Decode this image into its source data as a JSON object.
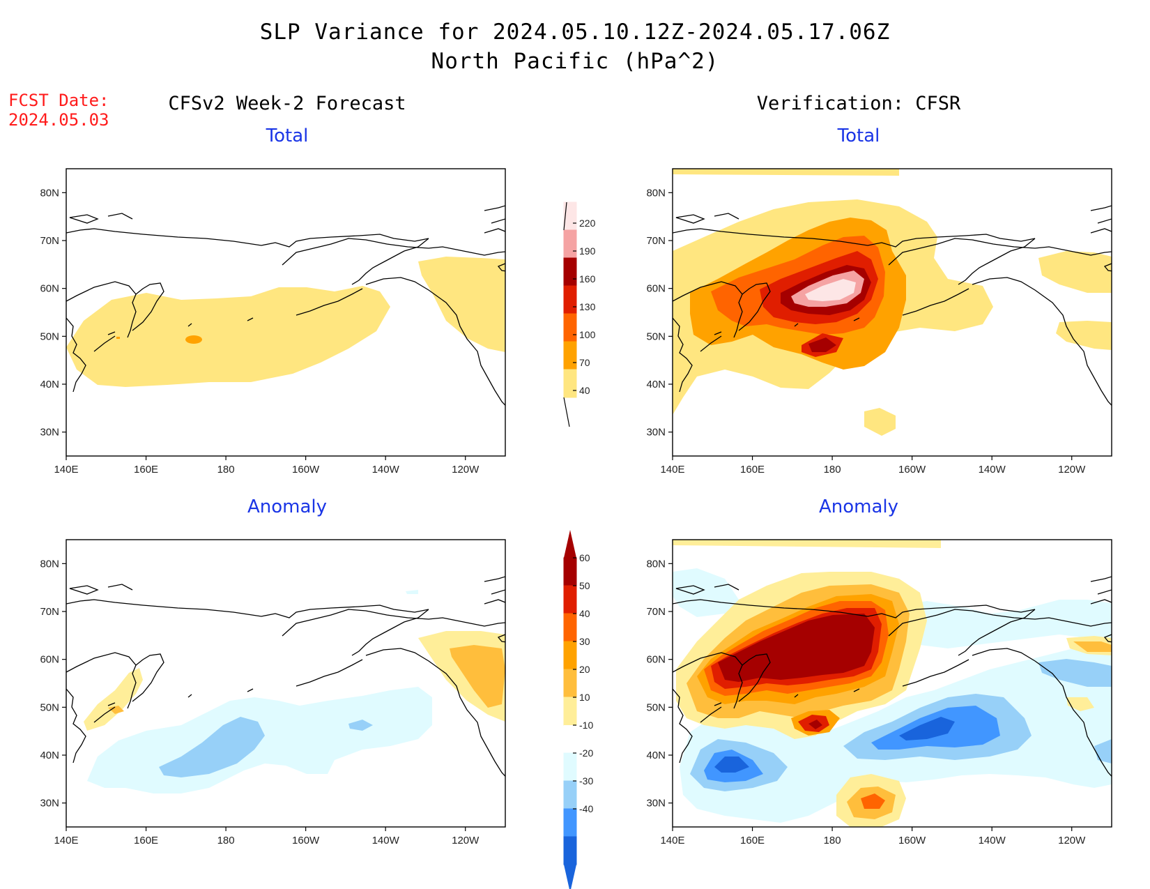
{
  "header": {
    "title": "SLP Variance for 2024.05.10.12Z-2024.05.17.06Z",
    "subtitle": "North Pacific (hPa^2)"
  },
  "fcst": {
    "line1": "FCST Date:",
    "line2": "2024.05.03"
  },
  "columns": {
    "left": "CFSv2 Week-2 Forecast",
    "right": "Verification: CFSR"
  },
  "panels": {
    "top_left": "Total",
    "top_right": "Total",
    "bottom_left": "Anomaly",
    "bottom_right": "Anomaly"
  },
  "axes": {
    "lat_labels": [
      "80N",
      "70N",
      "60N",
      "50N",
      "40N",
      "30N"
    ],
    "lat_values": [
      80,
      70,
      60,
      50,
      40,
      30
    ],
    "lon_labels": [
      "140E",
      "160E",
      "180",
      "160W",
      "140W",
      "120W"
    ],
    "lon_values": [
      140,
      160,
      180,
      200,
      220,
      240
    ],
    "lon_range": [
      140,
      250
    ],
    "lat_range": [
      25,
      85
    ]
  },
  "colorbars": {
    "total": {
      "labels": [
        "40",
        "70",
        "100",
        "130",
        "160",
        "190",
        "220"
      ],
      "colors": [
        "#ffe680",
        "#ffa200",
        "#ff6400",
        "#e01e00",
        "#a50000",
        "#f5a3a3",
        "#fde6e6"
      ]
    },
    "anomaly": {
      "labels": [
        "60",
        "50",
        "40",
        "30",
        "20",
        "10",
        "-10",
        "-20",
        "-30",
        "-40"
      ],
      "colors": [
        "#a50000",
        "#e01e00",
        "#ff6400",
        "#ffa200",
        "#ffbe3c",
        "#ffee99",
        "#ffffff",
        "#e0fbff",
        "#97d0f8",
        "#4196ff",
        "#1964dc"
      ]
    }
  }
}
